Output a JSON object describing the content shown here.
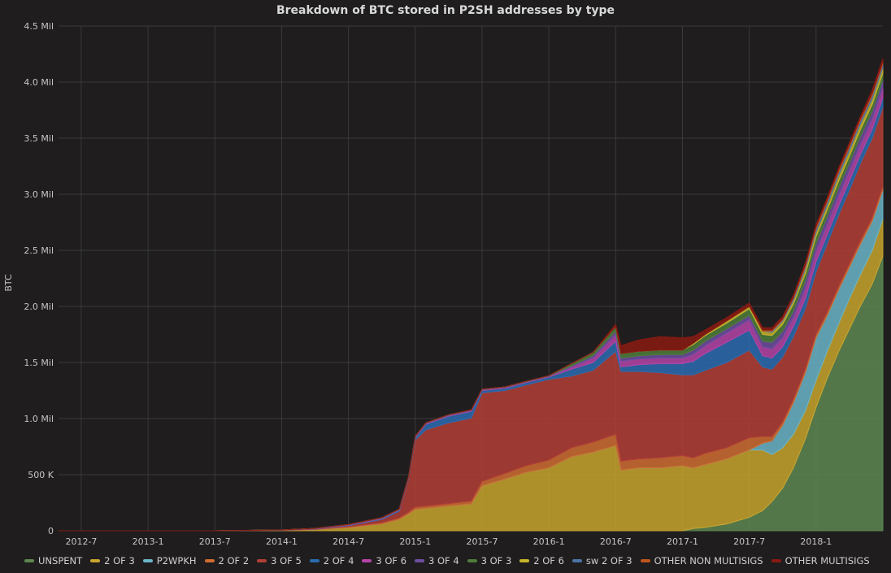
{
  "chart_data": {
    "type": "area",
    "stacked": true,
    "title": "Breakdown of BTC stored in P2SH addresses by type",
    "ylabel": "BTC",
    "xlabel": "",
    "ylim": [
      0,
      4500000
    ],
    "yticks": [
      {
        "value": 0,
        "label": "0"
      },
      {
        "value": 500000,
        "label": "500 K"
      },
      {
        "value": 1000000,
        "label": "1.0 Mil"
      },
      {
        "value": 1500000,
        "label": "1.5 Mil"
      },
      {
        "value": 2000000,
        "label": "2.0 Mil"
      },
      {
        "value": 2500000,
        "label": "2.5 Mil"
      },
      {
        "value": 3000000,
        "label": "3.0 Mil"
      },
      {
        "value": 3500000,
        "label": "3.5 Mil"
      },
      {
        "value": 4000000,
        "label": "4.0 Mil"
      },
      {
        "value": 4500000,
        "label": "4.5 Mil"
      }
    ],
    "xlim": [
      2012.33,
      2018.5
    ],
    "xticks": [
      {
        "value": 2012.5,
        "label": "2012-7"
      },
      {
        "value": 2013.0,
        "label": "2013-1"
      },
      {
        "value": 2013.5,
        "label": "2013-7"
      },
      {
        "value": 2014.0,
        "label": "2014-1"
      },
      {
        "value": 2014.5,
        "label": "2014-7"
      },
      {
        "value": 2015.0,
        "label": "2015-1"
      },
      {
        "value": 2015.5,
        "label": "2015-7"
      },
      {
        "value": 2016.0,
        "label": "2016-1"
      },
      {
        "value": 2016.5,
        "label": "2016-7"
      },
      {
        "value": 2017.0,
        "label": "2017-1"
      },
      {
        "value": 2017.5,
        "label": "2017-7"
      },
      {
        "value": 2018.0,
        "label": "2018-1"
      }
    ],
    "x": [
      2012.33,
      2012.5,
      2013.0,
      2013.5,
      2014.0,
      2014.25,
      2014.5,
      2014.75,
      2014.88,
      2014.95,
      2015.0,
      2015.08,
      2015.25,
      2015.42,
      2015.5,
      2015.67,
      2015.83,
      2016.0,
      2016.17,
      2016.33,
      2016.5,
      2016.54,
      2016.67,
      2016.83,
      2017.0,
      2017.08,
      2017.17,
      2017.33,
      2017.5,
      2017.6,
      2017.67,
      2017.75,
      2017.83,
      2017.92,
      2018.0,
      2018.08,
      2018.17,
      2018.25,
      2018.33,
      2018.42,
      2018.5
    ],
    "series": [
      {
        "name": "UNSPENT",
        "color": "#5e8751",
        "values": [
          0,
          0,
          0,
          0,
          0,
          0,
          0,
          0,
          0,
          0,
          0,
          0,
          0,
          0,
          0,
          0,
          0,
          0,
          0,
          0,
          0,
          0,
          0,
          0,
          0,
          20000,
          30000,
          60000,
          120000,
          180000,
          260000,
          380000,
          560000,
          820000,
          1100000,
          1350000,
          1600000,
          1800000,
          2000000,
          2200000,
          2450000
        ]
      },
      {
        "name": "2 OF 3",
        "color": "#c8a52e",
        "values": [
          0,
          0,
          0,
          0,
          3000,
          10000,
          30000,
          60000,
          100000,
          150000,
          190000,
          200000,
          220000,
          240000,
          400000,
          460000,
          520000,
          560000,
          660000,
          700000,
          760000,
          540000,
          560000,
          560000,
          580000,
          540000,
          560000,
          580000,
          600000,
          540000,
          420000,
          360000,
          300000,
          250000,
          240000,
          240000,
          250000,
          270000,
          280000,
          300000,
          330000
        ]
      },
      {
        "name": "P2WPKH",
        "color": "#6ab5c8",
        "values": [
          0,
          0,
          0,
          0,
          0,
          0,
          0,
          0,
          0,
          0,
          0,
          0,
          0,
          0,
          0,
          0,
          0,
          0,
          0,
          0,
          0,
          0,
          0,
          0,
          0,
          0,
          0,
          0,
          0,
          60000,
          120000,
          200000,
          280000,
          340000,
          380000,
          320000,
          300000,
          280000,
          270000,
          260000,
          260000
        ]
      },
      {
        "name": "2 OF 2",
        "color": "#cf6d32",
        "values": [
          0,
          0,
          0,
          0,
          1000,
          2000,
          5000,
          10000,
          15000,
          15000,
          20000,
          20000,
          22000,
          25000,
          40000,
          50000,
          60000,
          70000,
          80000,
          90000,
          100000,
          80000,
          80000,
          90000,
          90000,
          90000,
          100000,
          100000,
          110000,
          60000,
          40000,
          30000,
          30000,
          30000,
          30000,
          30000,
          30000,
          30000,
          30000,
          30000,
          30000
        ]
      },
      {
        "name": "3 OF 5",
        "color": "#b33e36",
        "values": [
          0,
          0,
          0,
          0,
          2000,
          5000,
          10000,
          30000,
          60000,
          300000,
          600000,
          680000,
          720000,
          740000,
          790000,
          740000,
          720000,
          720000,
          640000,
          640000,
          740000,
          800000,
          780000,
          760000,
          720000,
          740000,
          740000,
          760000,
          780000,
          620000,
          600000,
          580000,
          560000,
          540000,
          560000,
          610000,
          640000,
          660000,
          690000,
          710000,
          710000
        ]
      },
      {
        "name": "2 OF 4",
        "color": "#2c6bb0",
        "values": [
          0,
          0,
          0,
          0,
          1000,
          2000,
          5000,
          8000,
          10000,
          10000,
          20000,
          50000,
          60000,
          60000,
          20000,
          20000,
          20000,
          20000,
          60000,
          70000,
          90000,
          40000,
          60000,
          80000,
          100000,
          120000,
          150000,
          180000,
          180000,
          100000,
          100000,
          90000,
          90000,
          90000,
          90000,
          80000,
          80000,
          80000,
          80000,
          80000,
          80000
        ]
      },
      {
        "name": "3 OF 6",
        "color": "#b544a8",
        "values": [
          0,
          0,
          0,
          0,
          0,
          1000,
          2000,
          3000,
          3000,
          3000,
          5000,
          5000,
          5000,
          5000,
          5000,
          5000,
          5000,
          5000,
          20000,
          40000,
          60000,
          50000,
          50000,
          50000,
          50000,
          60000,
          70000,
          80000,
          90000,
          80000,
          80000,
          80000,
          80000,
          90000,
          90000,
          90000,
          90000,
          90000,
          90000,
          90000,
          90000
        ]
      },
      {
        "name": "3 OF 4",
        "color": "#6f4ea1",
        "values": [
          0,
          0,
          0,
          0,
          0,
          1000,
          2000,
          3000,
          3000,
          3000,
          5000,
          5000,
          5000,
          5000,
          5000,
          5000,
          5000,
          5000,
          10000,
          20000,
          30000,
          30000,
          30000,
          30000,
          30000,
          40000,
          40000,
          40000,
          40000,
          50000,
          60000,
          60000,
          60000,
          70000,
          70000,
          70000,
          70000,
          70000,
          70000,
          70000,
          70000
        ]
      },
      {
        "name": "3 OF 3",
        "color": "#4f7d3a",
        "values": [
          0,
          0,
          0,
          0,
          0,
          0,
          1000,
          2000,
          2000,
          2000,
          2000,
          2000,
          2000,
          2000,
          2000,
          2000,
          2000,
          2000,
          20000,
          30000,
          40000,
          40000,
          40000,
          40000,
          40000,
          50000,
          50000,
          50000,
          60000,
          60000,
          60000,
          60000,
          60000,
          60000,
          60000,
          60000,
          60000,
          60000,
          60000,
          60000,
          60000
        ]
      },
      {
        "name": "2 OF 6",
        "color": "#c8b42a",
        "values": [
          0,
          0,
          0,
          0,
          0,
          0,
          0,
          0,
          0,
          0,
          0,
          0,
          0,
          0,
          0,
          0,
          0,
          0,
          0,
          0,
          0,
          0,
          0,
          0,
          0,
          10000,
          10000,
          20000,
          20000,
          30000,
          30000,
          30000,
          30000,
          40000,
          40000,
          40000,
          50000,
          50000,
          50000,
          50000,
          50000
        ]
      },
      {
        "name": "sw 2 OF 3",
        "color": "#4b73a8",
        "values": [
          0,
          0,
          0,
          0,
          0,
          0,
          0,
          0,
          0,
          0,
          0,
          0,
          0,
          0,
          0,
          0,
          0,
          0,
          0,
          0,
          0,
          0,
          0,
          0,
          0,
          0,
          0,
          0,
          0,
          0,
          10000,
          10000,
          20000,
          20000,
          30000,
          30000,
          30000,
          30000,
          30000,
          30000,
          30000
        ]
      },
      {
        "name": "OTHER NON MULTISIGS",
        "color": "#c0561d",
        "values": [
          0,
          0,
          0,
          0,
          0,
          0,
          0,
          0,
          0,
          0,
          0,
          0,
          0,
          0,
          0,
          0,
          0,
          0,
          0,
          0,
          0,
          0,
          0,
          0,
          0,
          0,
          0,
          0,
          0,
          10000,
          10000,
          10000,
          10000,
          20000,
          20000,
          20000,
          20000,
          20000,
          20000,
          20000,
          20000
        ]
      },
      {
        "name": "OTHER MULTISIGS",
        "color": "#8a1a12",
        "values": [
          0,
          0,
          0,
          0,
          0,
          0,
          0,
          0,
          0,
          0,
          0,
          0,
          0,
          0,
          0,
          0,
          0,
          0,
          0,
          0,
          20000,
          70000,
          100000,
          120000,
          110000,
          60000,
          40000,
          30000,
          30000,
          20000,
          20000,
          20000,
          20000,
          20000,
          20000,
          20000,
          20000,
          20000,
          20000,
          30000,
          30000
        ]
      }
    ]
  }
}
